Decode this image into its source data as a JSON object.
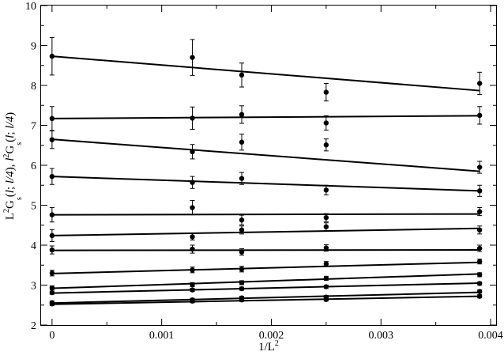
{
  "chart_data": {
    "type": "scatter",
    "title": "",
    "xlabel_main": "1/L",
    "xlabel_sup": "2",
    "ylabel_parts": [
      {
        "text": "L",
        "style": "normal"
      },
      {
        "text": "2",
        "style": "sup"
      },
      {
        "text": "G",
        "style": "normal"
      },
      {
        "text": "s",
        "style": "sub"
      },
      {
        "text": "(",
        "style": "normal"
      },
      {
        "text": "l",
        "style": "italic"
      },
      {
        "text": "; ",
        "style": "normal"
      },
      {
        "text": "l/4",
        "style": "italic"
      },
      {
        "text": ")",
        "style": "normal"
      },
      {
        "text": ", ",
        "style": "normal"
      },
      {
        "text": "l",
        "style": "italic"
      },
      {
        "text": "2",
        "style": "sup"
      },
      {
        "text": "G",
        "style": "normal"
      },
      {
        "text": "s",
        "style": "sub"
      },
      {
        "text": "(",
        "style": "normal"
      },
      {
        "text": "l",
        "style": "italic"
      },
      {
        "text": "; ",
        "style": "normal"
      },
      {
        "text": "l/4",
        "style": "italic"
      },
      {
        "text": ")",
        "style": "normal"
      }
    ],
    "xlim": [
      -0.0001,
      0.00405
    ],
    "ylim": [
      2,
      10
    ],
    "x_ticks": [
      0,
      0.001,
      0.002,
      0.003,
      0.004
    ],
    "x_tick_labels": [
      "0",
      "0.001",
      "0.002",
      "0.003",
      "0.004"
    ],
    "y_ticks": [
      2,
      3,
      4,
      5,
      6,
      7,
      8,
      9,
      10
    ],
    "y_tick_labels": [
      "2",
      "3",
      "4",
      "5",
      "6",
      "7",
      "8",
      "9",
      "10"
    ],
    "grid": false,
    "x": [
      0,
      0.00128,
      0.00173,
      0.0025,
      0.0039
    ],
    "series": [
      {
        "y": [
          8.73,
          8.7,
          8.26,
          7.83,
          8.05
        ],
        "err": [
          0.47,
          0.45,
          0.3,
          0.22,
          0.28
        ],
        "fit": [
          8.73,
          7.87
        ]
      },
      {
        "y": [
          7.17,
          7.18,
          7.27,
          7.06,
          7.25
        ],
        "err": [
          0.3,
          0.28,
          0.22,
          0.18,
          0.22
        ],
        "fit": [
          7.17,
          7.24
        ]
      },
      {
        "y": [
          6.64,
          6.34,
          6.58,
          6.51,
          5.95
        ],
        "err": [
          0.22,
          0.18,
          0.2,
          0.15,
          0.15
        ],
        "fit": [
          6.65,
          5.85
        ]
      },
      {
        "y": [
          5.72,
          5.57,
          5.67,
          5.38,
          5.36
        ],
        "err": [
          0.2,
          0.15,
          0.15,
          0.12,
          0.14
        ],
        "fit": [
          5.72,
          5.36
        ]
      },
      {
        "y": [
          4.76,
          4.94,
          4.63,
          4.69,
          4.84
        ],
        "err": [
          0.18,
          0.18,
          0.12,
          0.1,
          0.1
        ],
        "fit": [
          4.76,
          4.78
        ]
      },
      {
        "y": [
          4.24,
          4.21,
          4.38,
          4.46,
          4.38
        ],
        "err": [
          0.15,
          0.08,
          0.1,
          0.1,
          0.1
        ],
        "fit": [
          4.24,
          4.42
        ]
      },
      {
        "y": [
          3.88,
          3.9,
          3.83,
          3.93,
          3.92
        ],
        "err": [
          0.1,
          0.1,
          0.08,
          0.08,
          0.08
        ],
        "fit": [
          3.87,
          3.88
        ]
      },
      {
        "y": [
          3.3,
          3.38,
          3.4,
          3.53,
          3.59
        ],
        "err": [
          0.07,
          0.07,
          0.07,
          0.06,
          0.06
        ],
        "fit": [
          3.29,
          3.57
        ]
      },
      {
        "y": [
          2.93,
          3.01,
          3.06,
          3.17,
          3.26
        ],
        "err": [
          0.05,
          0.05,
          0.05,
          0.05,
          0.05
        ],
        "fit": [
          2.92,
          3.28
        ]
      },
      {
        "y": [
          2.81,
          2.88,
          2.91,
          2.96,
          3.04
        ],
        "err": [
          0.04,
          0.04,
          0.04,
          0.04,
          0.04
        ],
        "fit": [
          2.8,
          3.05
        ]
      },
      {
        "y": [
          2.56,
          2.63,
          2.68,
          2.7,
          2.84
        ],
        "err": [
          0.04,
          0.04,
          0.04,
          0.04,
          0.04
        ],
        "fit": [
          2.55,
          2.82
        ]
      },
      {
        "y": [
          2.53,
          2.6,
          2.63,
          2.64,
          2.72
        ],
        "err": [
          0.04,
          0.04,
          0.04,
          0.04,
          0.04
        ],
        "fit": [
          2.52,
          2.72
        ]
      }
    ]
  }
}
